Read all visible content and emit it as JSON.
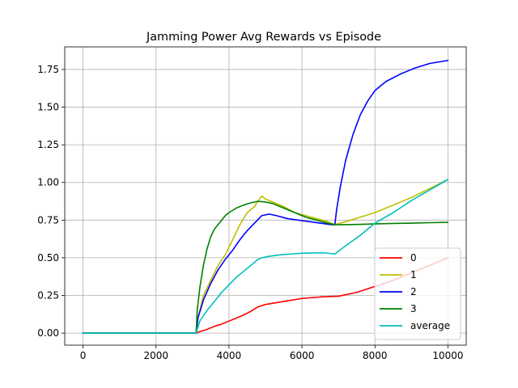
{
  "chart_data": {
    "type": "line",
    "title": "Jamming Power Avg Rewards vs Episode",
    "xlabel": "",
    "ylabel": "",
    "xlim": [
      -500,
      10500
    ],
    "ylim": [
      -0.08,
      1.9
    ],
    "xticks": [
      0,
      2000,
      4000,
      6000,
      8000,
      10000
    ],
    "xtick_labels": [
      "0",
      "2000",
      "4000",
      "6000",
      "8000",
      "10000"
    ],
    "yticks": [
      0.0,
      0.25,
      0.5,
      0.75,
      1.0,
      1.25,
      1.5,
      1.75
    ],
    "ytick_labels": [
      "0.00",
      "0.25",
      "0.50",
      "0.75",
      "1.00",
      "1.25",
      "1.50",
      "1.75"
    ],
    "grid": true,
    "legend_position": "lower-right",
    "series": [
      {
        "name": "0",
        "color": "#ff0000",
        "x": [
          0,
          3100,
          3200,
          3400,
          3600,
          3800,
          4000,
          4200,
          4400,
          4600,
          4800,
          5000,
          5500,
          6000,
          6500,
          7000,
          7500,
          8000,
          8500,
          9000,
          9500,
          10000
        ],
        "y": [
          0,
          0,
          0.01,
          0.025,
          0.045,
          0.06,
          0.08,
          0.1,
          0.12,
          0.145,
          0.175,
          0.19,
          0.21,
          0.23,
          0.24,
          0.245,
          0.27,
          0.31,
          0.35,
          0.4,
          0.45,
          0.5
        ]
      },
      {
        "name": "1",
        "color": "#bfbf00",
        "x": [
          0,
          3100,
          3150,
          3300,
          3500,
          3700,
          3900,
          4100,
          4300,
          4500,
          4700,
          4800,
          4900,
          5000,
          5200,
          5500,
          5800,
          6100,
          6400,
          6700,
          6900,
          7200,
          7600,
          8000,
          8500,
          9000,
          9500,
          10000
        ],
        "y": [
          0,
          0,
          0.1,
          0.25,
          0.35,
          0.45,
          0.52,
          0.62,
          0.72,
          0.8,
          0.84,
          0.88,
          0.91,
          0.89,
          0.87,
          0.84,
          0.8,
          0.78,
          0.76,
          0.74,
          0.72,
          0.74,
          0.77,
          0.8,
          0.85,
          0.9,
          0.96,
          1.02
        ]
      },
      {
        "name": "2",
        "color": "#0000ff",
        "x": [
          0,
          3100,
          3150,
          3300,
          3500,
          3700,
          3900,
          4100,
          4300,
          4500,
          4700,
          4900,
          5100,
          5300,
          5600,
          5900,
          6200,
          6500,
          6800,
          6900,
          6950,
          7050,
          7200,
          7400,
          7600,
          7800,
          8000,
          8300,
          8700,
          9100,
          9500,
          10000
        ],
        "y": [
          0,
          0,
          0.1,
          0.22,
          0.33,
          0.42,
          0.49,
          0.55,
          0.62,
          0.68,
          0.73,
          0.78,
          0.79,
          0.78,
          0.76,
          0.75,
          0.74,
          0.73,
          0.72,
          0.72,
          0.82,
          0.97,
          1.15,
          1.32,
          1.45,
          1.54,
          1.61,
          1.67,
          1.72,
          1.76,
          1.79,
          1.81
        ]
      },
      {
        "name": "3",
        "color": "#008000",
        "x": [
          0,
          3100,
          3130,
          3200,
          3300,
          3400,
          3500,
          3600,
          3700,
          3800,
          3900,
          4000,
          4200,
          4400,
          4600,
          4800,
          5000,
          5200,
          5500,
          5800,
          6100,
          6400,
          6700,
          6900,
          7200,
          7600,
          8000,
          8500,
          9000,
          9500,
          10000
        ],
        "y": [
          0,
          0,
          0.15,
          0.3,
          0.45,
          0.56,
          0.64,
          0.69,
          0.72,
          0.75,
          0.78,
          0.8,
          0.83,
          0.85,
          0.865,
          0.875,
          0.87,
          0.86,
          0.83,
          0.8,
          0.77,
          0.75,
          0.73,
          0.72,
          0.72,
          0.722,
          0.725,
          0.728,
          0.73,
          0.733,
          0.735
        ]
      },
      {
        "name": "average",
        "color": "#00bfbf",
        "x": [
          0,
          3100,
          3200,
          3400,
          3600,
          3800,
          4000,
          4200,
          4400,
          4600,
          4800,
          4900,
          5100,
          5400,
          5700,
          6000,
          6300,
          6600,
          6900,
          7200,
          7600,
          8000,
          8500,
          9000,
          9500,
          10000
        ],
        "y": [
          0,
          0,
          0.08,
          0.15,
          0.21,
          0.27,
          0.32,
          0.37,
          0.41,
          0.45,
          0.49,
          0.5,
          0.51,
          0.52,
          0.525,
          0.53,
          0.532,
          0.533,
          0.525,
          0.58,
          0.65,
          0.73,
          0.8,
          0.88,
          0.95,
          1.02
        ]
      }
    ]
  }
}
